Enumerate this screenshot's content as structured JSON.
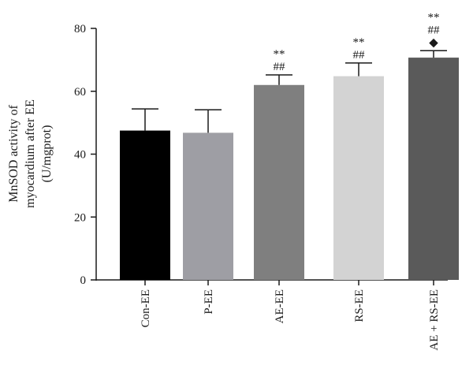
{
  "chart_data": {
    "type": "bar",
    "title": "",
    "xlabel": "",
    "ylabel_lines": [
      "MnSOD activity of",
      "myocardium after EE",
      "(U/mgprot)"
    ],
    "categories": [
      "Con-EE",
      "P-EE",
      "AE-EE",
      "RS-EE",
      "AE + RS-EE"
    ],
    "values": [
      47.5,
      46.8,
      62.0,
      64.8,
      70.7
    ],
    "errors": [
      6.9,
      7.3,
      3.2,
      4.2,
      2.2
    ],
    "colors": [
      "#000000",
      "#9e9ea4",
      "#7f7f7f",
      "#d3d3d3",
      "#5a5a5a"
    ],
    "annotations": [
      [],
      [],
      [
        "**",
        "##"
      ],
      [
        "**",
        "##"
      ],
      [
        "**",
        "##",
        "◆"
      ]
    ],
    "ylim": [
      0,
      80
    ],
    "yticks": [
      0,
      20,
      40,
      60,
      80
    ],
    "grid": false
  }
}
